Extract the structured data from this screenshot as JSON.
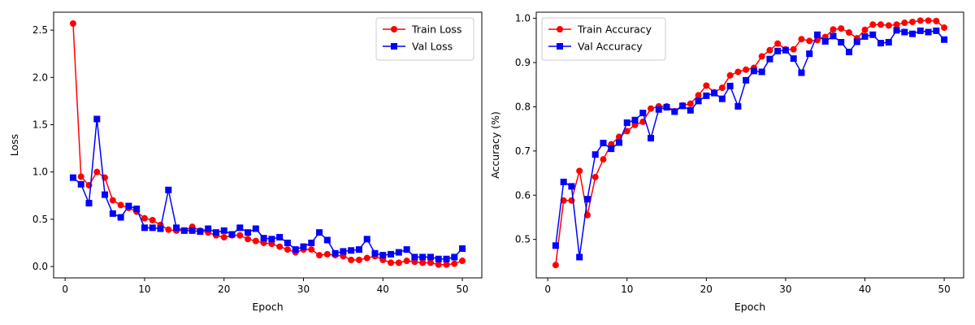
{
  "chart_data": [
    {
      "type": "line",
      "xlabel": "Epoch",
      "ylabel": "Loss",
      "xlim": [
        -1.45,
        52.45
      ],
      "ylim": [
        -0.12,
        2.69
      ],
      "xticks": [
        0,
        10,
        20,
        30,
        40,
        50
      ],
      "yticks": [
        0.0,
        0.5,
        1.0,
        1.5,
        2.0,
        2.5
      ],
      "legend_position": "top-right",
      "grid": false,
      "x": [
        1,
        2,
        3,
        4,
        5,
        6,
        7,
        8,
        9,
        10,
        11,
        12,
        13,
        14,
        15,
        16,
        17,
        18,
        19,
        20,
        21,
        22,
        23,
        24,
        25,
        26,
        27,
        28,
        29,
        30,
        31,
        32,
        33,
        34,
        35,
        36,
        37,
        38,
        39,
        40,
        41,
        42,
        43,
        44,
        45,
        46,
        47,
        48,
        49,
        50
      ],
      "series": [
        {
          "name": "Train Loss",
          "color": "#ff0000",
          "marker": "circle",
          "values": [
            2.57,
            0.95,
            0.86,
            1.0,
            0.94,
            0.7,
            0.65,
            0.62,
            0.58,
            0.51,
            0.49,
            0.44,
            0.39,
            0.38,
            0.38,
            0.42,
            0.38,
            0.36,
            0.33,
            0.31,
            0.33,
            0.33,
            0.29,
            0.27,
            0.25,
            0.24,
            0.21,
            0.18,
            0.15,
            0.18,
            0.18,
            0.12,
            0.13,
            0.12,
            0.11,
            0.07,
            0.07,
            0.09,
            0.11,
            0.07,
            0.04,
            0.04,
            0.06,
            0.05,
            0.04,
            0.04,
            0.02,
            0.02,
            0.03,
            0.06
          ]
        },
        {
          "name": "Val Loss",
          "color": "#0000ff",
          "marker": "square",
          "values": [
            0.94,
            0.87,
            0.67,
            1.56,
            0.76,
            0.56,
            0.52,
            0.64,
            0.61,
            0.41,
            0.41,
            0.4,
            0.81,
            0.41,
            0.38,
            0.38,
            0.37,
            0.4,
            0.36,
            0.38,
            0.34,
            0.41,
            0.36,
            0.4,
            0.3,
            0.29,
            0.31,
            0.25,
            0.18,
            0.21,
            0.25,
            0.36,
            0.28,
            0.14,
            0.16,
            0.17,
            0.18,
            0.29,
            0.14,
            0.12,
            0.13,
            0.15,
            0.18,
            0.1,
            0.1,
            0.1,
            0.08,
            0.08,
            0.1,
            0.19
          ]
        }
      ]
    },
    {
      "type": "line",
      "xlabel": "Epoch",
      "ylabel": "Accuracy (%)",
      "xlim": [
        -1.45,
        52.45
      ],
      "ylim": [
        0.413,
        1.014
      ],
      "xticks": [
        0,
        10,
        20,
        30,
        40,
        50
      ],
      "yticks": [
        0.5,
        0.6,
        0.7,
        0.8,
        0.9,
        1.0
      ],
      "legend_position": "top-left",
      "grid": false,
      "x": [
        1,
        2,
        3,
        4,
        5,
        6,
        7,
        8,
        9,
        10,
        11,
        12,
        13,
        14,
        15,
        16,
        17,
        18,
        19,
        20,
        21,
        22,
        23,
        24,
        25,
        26,
        27,
        28,
        29,
        30,
        31,
        32,
        33,
        34,
        35,
        36,
        37,
        38,
        39,
        40,
        41,
        42,
        43,
        44,
        45,
        46,
        47,
        48,
        49,
        50
      ],
      "series": [
        {
          "name": "Train Accuracy",
          "color": "#ff0000",
          "marker": "circle",
          "values": [
            0.442,
            0.588,
            0.588,
            0.655,
            0.555,
            0.641,
            0.681,
            0.715,
            0.732,
            0.745,
            0.759,
            0.766,
            0.796,
            0.801,
            0.801,
            0.79,
            0.803,
            0.807,
            0.826,
            0.848,
            0.833,
            0.843,
            0.871,
            0.879,
            0.884,
            0.888,
            0.914,
            0.928,
            0.943,
            0.93,
            0.93,
            0.953,
            0.949,
            0.951,
            0.958,
            0.975,
            0.977,
            0.968,
            0.955,
            0.974,
            0.986,
            0.986,
            0.984,
            0.986,
            0.99,
            0.992,
            0.995,
            0.995,
            0.994,
            0.979
          ]
        },
        {
          "name": "Val Accuracy",
          "color": "#0000ff",
          "marker": "square",
          "values": [
            0.486,
            0.63,
            0.62,
            0.46,
            0.591,
            0.692,
            0.718,
            0.705,
            0.719,
            0.764,
            0.77,
            0.786,
            0.729,
            0.794,
            0.799,
            0.789,
            0.802,
            0.792,
            0.813,
            0.825,
            0.831,
            0.818,
            0.847,
            0.801,
            0.86,
            0.881,
            0.879,
            0.908,
            0.926,
            0.928,
            0.909,
            0.877,
            0.92,
            0.963,
            0.948,
            0.96,
            0.946,
            0.924,
            0.947,
            0.959,
            0.963,
            0.944,
            0.946,
            0.973,
            0.969,
            0.965,
            0.972,
            0.969,
            0.972,
            0.952
          ]
        }
      ]
    }
  ]
}
